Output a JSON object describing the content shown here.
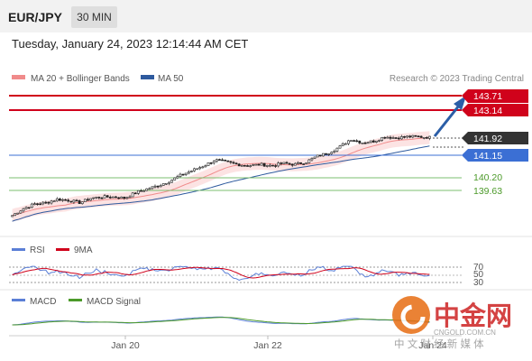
{
  "header": {
    "pair": "EUR/JPY",
    "timeframe": "30 MIN"
  },
  "datetime": "Tuesday, January 24, 2023 12:14:44 AM CET",
  "legend": {
    "ma_bb": "MA 20 + Bollinger Bands",
    "ma50": "MA 50",
    "research": "Research © 2023 Trading Central",
    "rsi": "RSI",
    "ma9": "9MA",
    "macd": "MACD",
    "macd_signal": "MACD Signal"
  },
  "colors": {
    "resistance": "#d0021b",
    "support": "#5aa552",
    "pivot": "#3b6fd4",
    "price_box": "#333333",
    "arrow": "#2b5ea7",
    "ma20": "#f08b8b",
    "ma50": "#2e5a9e",
    "rsi": "#5b7fd6",
    "ma9": "#d0021b",
    "macd": "#5b7fd6",
    "macd_signal": "#4c9a2a"
  },
  "levels": {
    "r2": "143.71",
    "r1": "143.14",
    "price": "141.92",
    "pivot": "141.15",
    "s1": "140.20",
    "s2": "139.63"
  },
  "rsi_levels": {
    "high": "70",
    "mid": "50",
    "low": "30"
  },
  "xaxis": {
    "tick1": "Jan 20",
    "tick2": "Jan 22",
    "tick3": "Jan 24"
  },
  "watermark": {
    "logo_text": "中金网",
    "url": "CNGOLD.COM.CN",
    "tagline": "中 文 财 经 新 媒 体"
  },
  "chart_data": {
    "type": "candlestick",
    "close_path": [
      138.55,
      138.85,
      139.05,
      139.1,
      139.25,
      139.2,
      139.1,
      139.3,
      139.35,
      139.35,
      139.3,
      139.55,
      139.7,
      139.85,
      140.05,
      140.3,
      140.5,
      140.7,
      140.95,
      140.85,
      140.75,
      140.7,
      140.75,
      140.7,
      140.8,
      140.75,
      140.85,
      141.1,
      141.25,
      141.5,
      141.85,
      141.7,
      141.75,
      141.95,
      141.9,
      141.95,
      141.95,
      141.92
    ],
    "price_axis_labels": [
      "143.71",
      "143.14",
      "141.92",
      "141.15",
      "140.20",
      "139.63"
    ],
    "rsi_levels": [
      70,
      50,
      30
    ],
    "x_ticks": [
      "Jan 20",
      "Jan 22",
      "Jan 24"
    ]
  }
}
